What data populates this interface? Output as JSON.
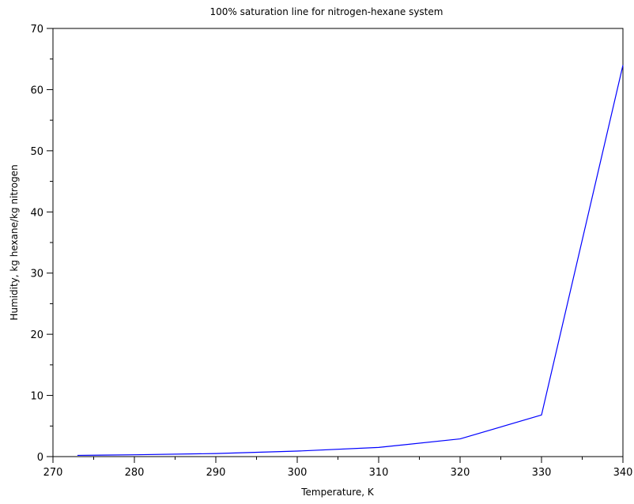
{
  "chart_data": {
    "type": "line",
    "title": "100% saturation line for nitrogen-hexane system",
    "xlabel": "Temperature, K",
    "ylabel": "Humidity, kg hexane/kg nitrogen",
    "xlim": [
      270,
      340
    ],
    "ylim": [
      0,
      70
    ],
    "x_major_ticks": [
      270,
      280,
      290,
      300,
      310,
      320,
      330,
      340
    ],
    "y_major_ticks": [
      0,
      10,
      20,
      30,
      40,
      50,
      60,
      70
    ],
    "x_tick_labels": [
      "270",
      "280",
      "290",
      "300",
      "310",
      "320",
      "330",
      "340"
    ],
    "y_tick_labels": [
      "0",
      "10",
      "20",
      "30",
      "40",
      "50",
      "60",
      "70"
    ],
    "grid": false,
    "series": [
      {
        "color": "#0000ff",
        "x": [
          273,
          280,
          290,
          300,
          310,
          320,
          330,
          340
        ],
        "y": [
          0.2,
          0.3,
          0.5,
          0.9,
          1.5,
          2.9,
          6.8,
          64.0
        ]
      }
    ]
  }
}
